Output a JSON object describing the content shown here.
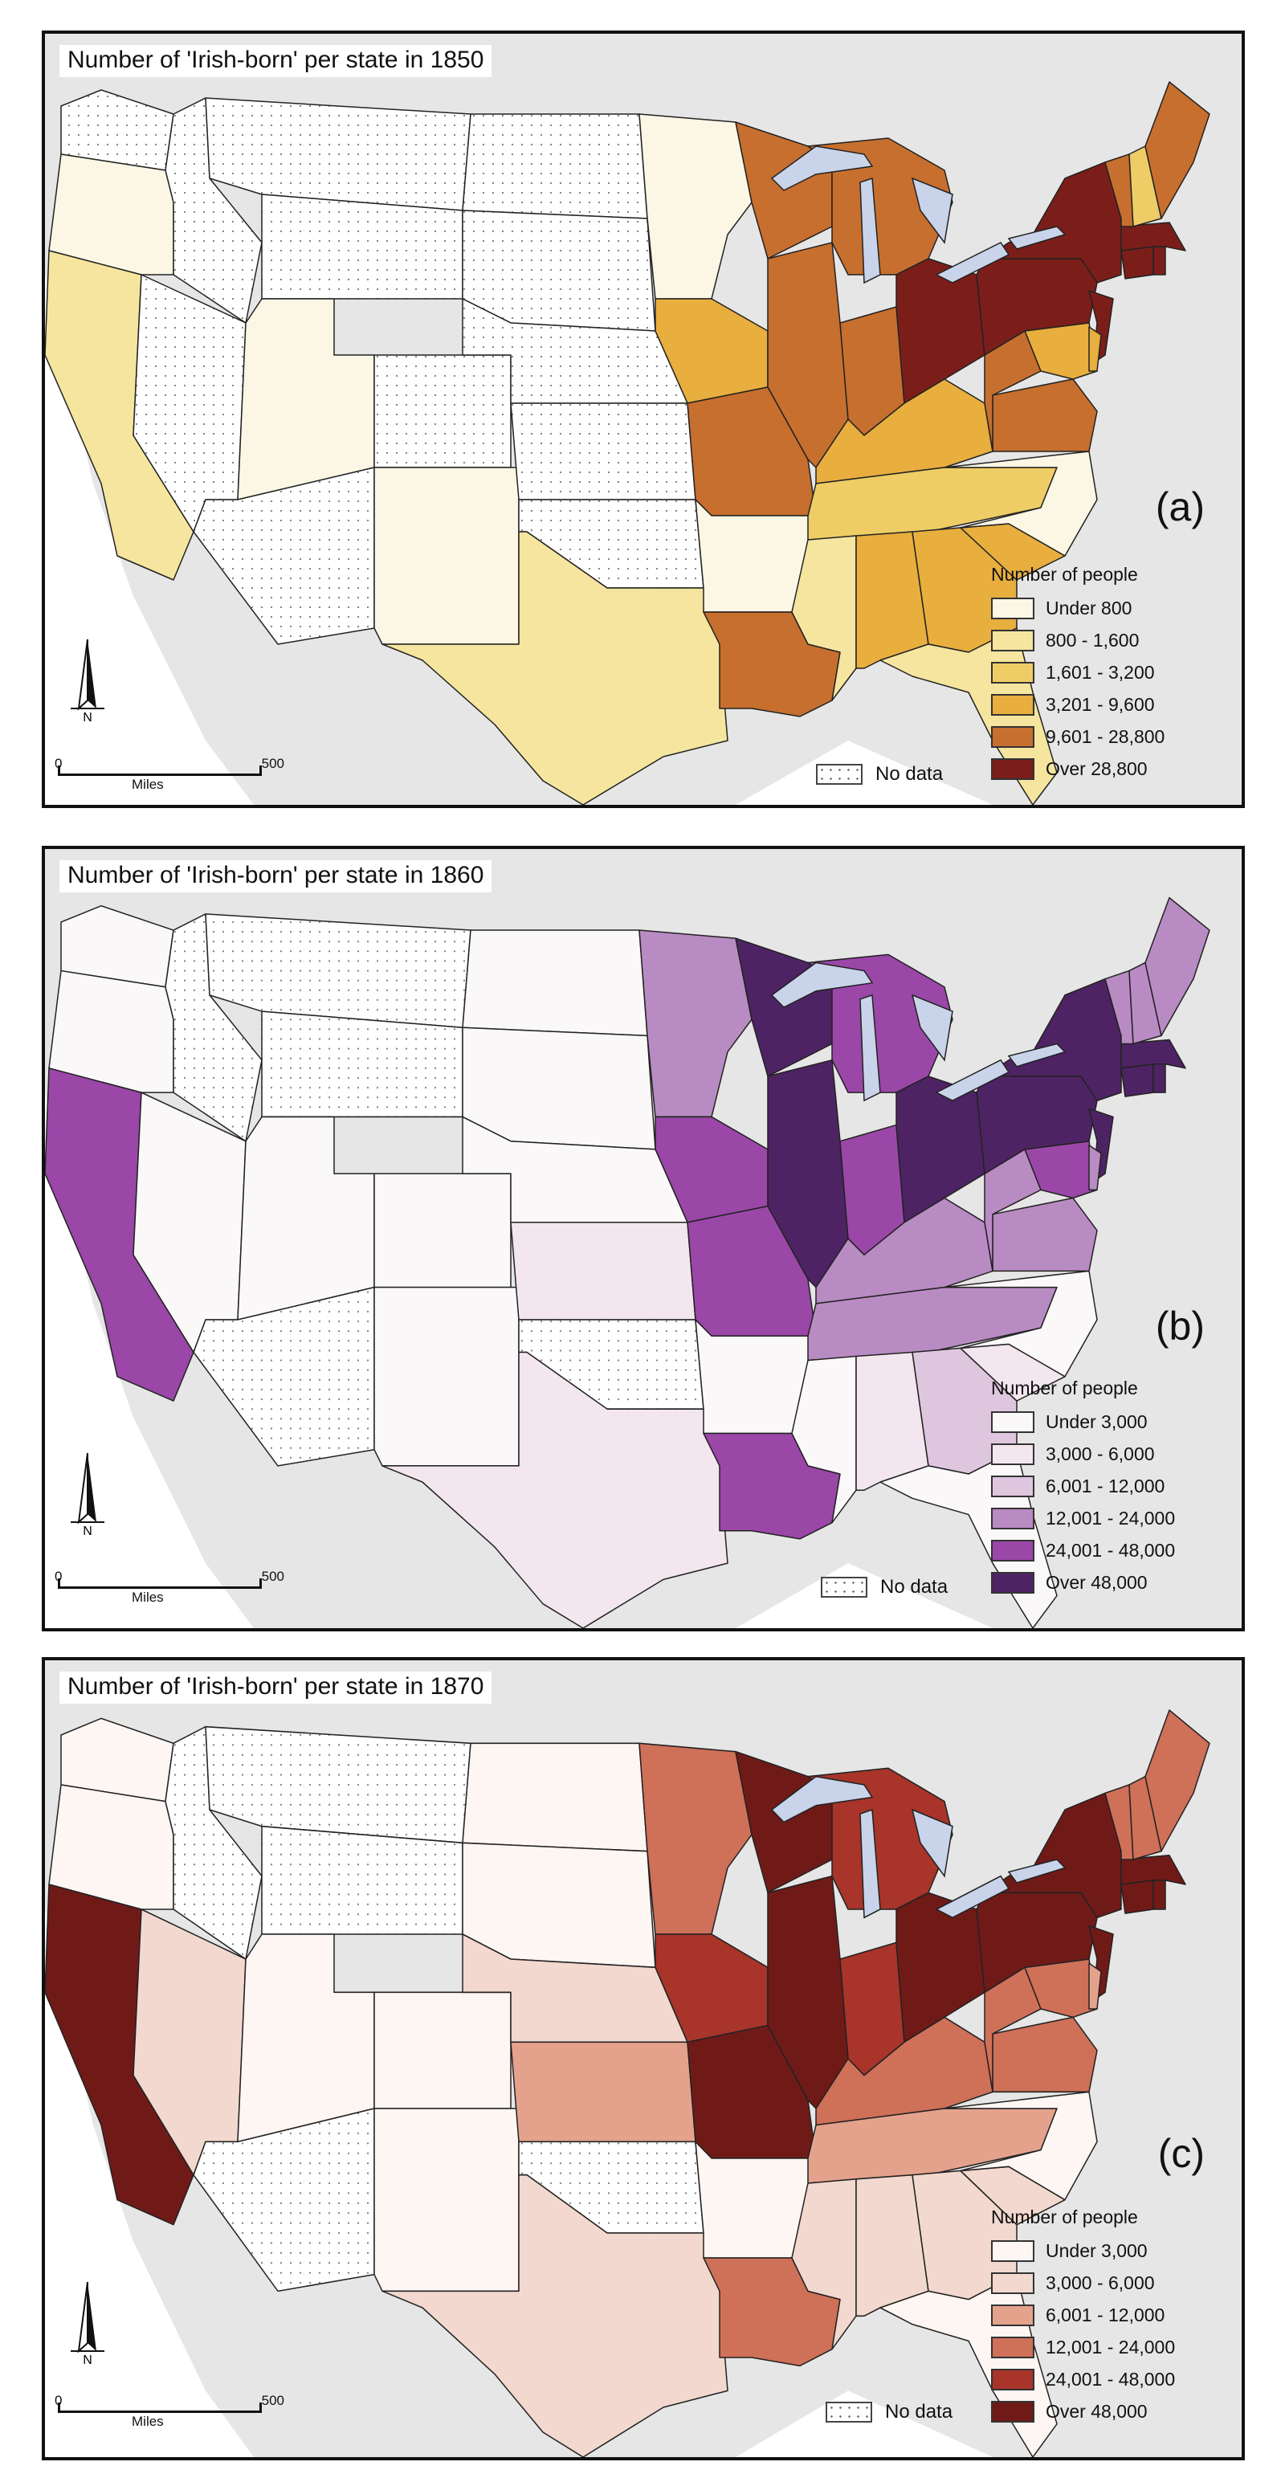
{
  "panels": [
    {
      "id": "a",
      "title": "Number of 'Irish-born' per state in 1850",
      "letter": "(a)",
      "legend_title": "Number of people",
      "legend": [
        {
          "label": "Under  800",
          "color": "#FBF7E4"
        },
        {
          "label": "800 - 1,600",
          "color": "#F5E59E"
        },
        {
          "label": "1,601 - 3,200",
          "color": "#EFCD66"
        },
        {
          "label": "3,201 - 9,600",
          "color": "#E8AE3E"
        },
        {
          "label": "9,601 - 28,800",
          "color": "#C76F2E"
        },
        {
          "label": "Over    28,800",
          "color": "#7B1E1A"
        }
      ],
      "no_data_label": "No data",
      "scale": {
        "zero": "0",
        "max": "500",
        "unit": "Miles"
      }
    },
    {
      "id": "b",
      "title": "Number of 'Irish-born' per state in 1860",
      "letter": "(b)",
      "legend_title": "Number of people",
      "legend": [
        {
          "label": "Under  3,000",
          "color": "#FBF8F9"
        },
        {
          "label": "3,000 - 6,000",
          "color": "#F3E6EE"
        },
        {
          "label": "6,001 - 12,000",
          "color": "#DFC6DF"
        },
        {
          "label": "12,001 - 24,000",
          "color": "#B98BC3"
        },
        {
          "label": "24,001 - 48,000",
          "color": "#9A47A8"
        },
        {
          "label": "Over     48,000",
          "color": "#4E2363"
        }
      ],
      "no_data_label": "No data",
      "scale": {
        "zero": "0",
        "max": "500",
        "unit": "Miles"
      }
    },
    {
      "id": "c",
      "title": "Number of 'Irish-born' per state in 1870",
      "letter": "(c)",
      "legend_title": "Number of people",
      "legend": [
        {
          "label": "Under  3,000",
          "color": "#FDF6F3"
        },
        {
          "label": "3,000 - 6,000",
          "color": "#F2D8CE"
        },
        {
          "label": "6,001 - 12,000",
          "color": "#E4A28D"
        },
        {
          "label": "12,001 - 24,000",
          "color": "#CF7058"
        },
        {
          "label": "24,001 - 48,000",
          "color": "#A8342A"
        },
        {
          "label": "Over     48,000",
          "color": "#701A18"
        }
      ],
      "no_data_label": "No data",
      "scale": {
        "zero": "0",
        "max": "500",
        "unit": "Miles"
      }
    }
  ],
  "map_classes": {
    "a": {
      "WA": -1,
      "OR": 0,
      "CA": 1,
      "NV": -1,
      "ID": -1,
      "MT": -1,
      "WY": -1,
      "UT": 0,
      "CO": -1,
      "AZ": -1,
      "NM": 0,
      "ND": -1,
      "SD": -1,
      "NE": -1,
      "KS": -1,
      "OK": -1,
      "TX": 1,
      "MN": 0,
      "IA": 3,
      "MO": 4,
      "AR": 0,
      "LA": 4,
      "WI": 4,
      "IL": 4,
      "MI": 4,
      "IN": 4,
      "OH": 5,
      "KY": 3,
      "TN": 2,
      "MS": 1,
      "AL": 3,
      "GA": 3,
      "FL": 1,
      "SC": 3,
      "NC": 0,
      "VA": 4,
      "WV": 4,
      "MD": 3,
      "PA": 5,
      "NY": 5,
      "NJ": 5,
      "DE": 3,
      "CT": 5,
      "RI": 5,
      "MA": 5,
      "VT": 4,
      "NH": 2,
      "ME": 4
    },
    "b": {
      "WA": 0,
      "OR": 0,
      "CA": 4,
      "NV": 0,
      "ID": -1,
      "MT": -1,
      "WY": -1,
      "UT": 0,
      "CO": 0,
      "AZ": -1,
      "NM": 0,
      "ND": 0,
      "SD": 0,
      "NE": 0,
      "KS": 1,
      "OK": -1,
      "TX": 1,
      "MN": 3,
      "IA": 4,
      "MO": 4,
      "AR": 0,
      "LA": 4,
      "WI": 5,
      "IL": 5,
      "MI": 4,
      "IN": 4,
      "OH": 5,
      "KY": 3,
      "TN": 3,
      "MS": 0,
      "AL": 1,
      "GA": 2,
      "FL": 0,
      "SC": 1,
      "NC": 0,
      "VA": 3,
      "WV": 3,
      "MD": 4,
      "PA": 5,
      "NY": 5,
      "NJ": 5,
      "DE": 3,
      "CT": 5,
      "RI": 5,
      "MA": 5,
      "VT": 3,
      "NH": 3,
      "ME": 3
    },
    "c": {
      "WA": 0,
      "OR": 0,
      "CA": 5,
      "NV": 1,
      "ID": -1,
      "MT": -1,
      "WY": -1,
      "UT": 0,
      "CO": 0,
      "AZ": -1,
      "NM": 0,
      "ND": 0,
      "SD": 0,
      "NE": 1,
      "KS": 2,
      "OK": -1,
      "TX": 1,
      "MN": 3,
      "IA": 4,
      "MO": 5,
      "AR": 0,
      "LA": 3,
      "WI": 5,
      "IL": 5,
      "MI": 4,
      "IN": 4,
      "OH": 5,
      "KY": 3,
      "TN": 2,
      "MS": 1,
      "AL": 1,
      "GA": 1,
      "FL": 0,
      "SC": 1,
      "NC": 0,
      "VA": 3,
      "WV": 3,
      "MD": 3,
      "PA": 5,
      "NY": 5,
      "NJ": 5,
      "DE": 2,
      "CT": 5,
      "RI": 5,
      "MA": 5,
      "VT": 3,
      "NH": 3,
      "ME": 3
    }
  }
}
